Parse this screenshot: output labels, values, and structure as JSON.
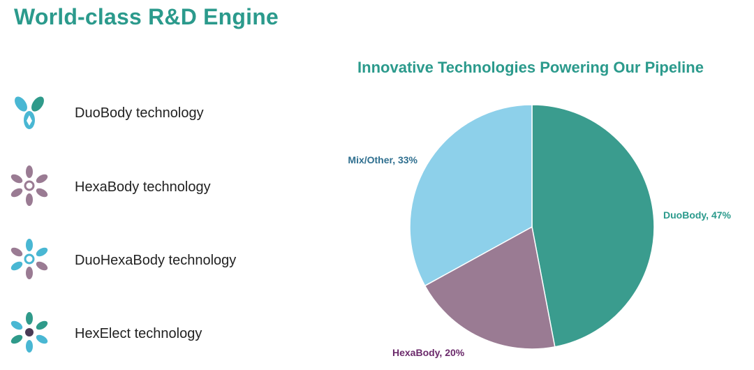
{
  "page": {
    "title": "World-class R&D Engine"
  },
  "technologies": [
    {
      "label": "DuoBody technology",
      "icon": "duobody-icon"
    },
    {
      "label": "HexaBody technology",
      "icon": "hexabody-icon"
    },
    {
      "label": "DuoHexaBody technology",
      "icon": "duohexabody-icon"
    },
    {
      "label": "HexElect technology",
      "icon": "hexelect-icon"
    }
  ],
  "colors": {
    "brand_teal": "#2b9a8c",
    "slice_duobody": "#3a9c8e",
    "slice_hexabody": "#9a7b93",
    "slice_mix": "#8dd0ea",
    "label_duobody": "#2b9a8c",
    "label_hexabody": "#6b2a6b",
    "label_mix": "#2f6f8f"
  },
  "chart_data": {
    "type": "pie",
    "title": "Innovative Technologies Powering Our Pipeline",
    "categories": [
      "DuoBody",
      "HexaBody",
      "Mix/Other"
    ],
    "values": [
      47,
      20,
      33
    ],
    "labels": [
      "DuoBody, 47%",
      "HexaBody, 20%",
      "Mix/Other, 33%"
    ],
    "start": "12 o'clock, clockwise",
    "legend": "none (data labels)"
  }
}
